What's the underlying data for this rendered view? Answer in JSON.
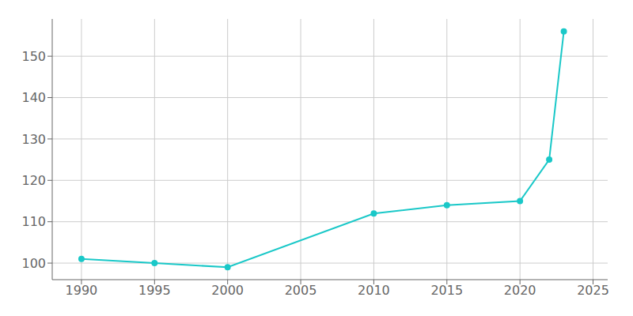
{
  "chart_data": {
    "type": "line",
    "x": [
      1990,
      1995,
      2000,
      2010,
      2015,
      2020,
      2022,
      2023
    ],
    "values": [
      101,
      100,
      99,
      112,
      114,
      115,
      125,
      156
    ],
    "color": "#1ac8c8",
    "marker": "o",
    "xlim": [
      1988,
      2026
    ],
    "ylim": [
      96,
      159
    ],
    "xticks": [
      1990,
      1995,
      2000,
      2005,
      2010,
      2015,
      2020,
      2025
    ],
    "yticks": [
      100,
      110,
      120,
      130,
      140,
      150
    ],
    "grid": true
  }
}
